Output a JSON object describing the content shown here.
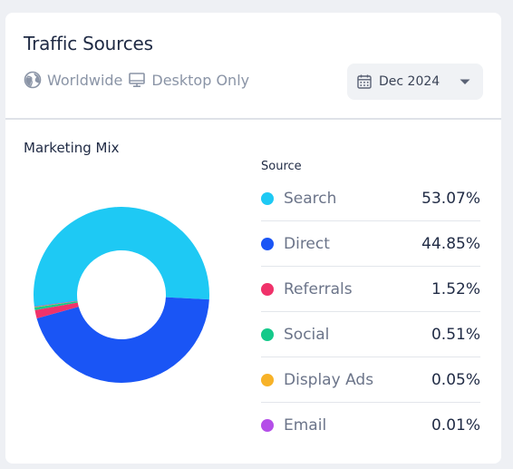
{
  "card": {
    "title": "Traffic Sources",
    "filters": [
      {
        "icon": "globe-icon",
        "label": "Worldwide"
      },
      {
        "icon": "desktop-icon",
        "label": "Desktop Only"
      }
    ],
    "date_picker": {
      "icon": "calendar-icon",
      "label": "Dec 2024"
    }
  },
  "section": {
    "title": "Marketing Mix"
  },
  "legend": {
    "header": "Source"
  },
  "colors": {
    "Search": "#1ec9f4",
    "Direct": "#1a55f5",
    "Referrals": "#f0326a",
    "Social": "#14c98a",
    "Display Ads": "#f7b228",
    "Email": "#b44ee8"
  },
  "chart_data": {
    "type": "pie",
    "categories": [
      "Search",
      "Direct",
      "Referrals",
      "Social",
      "Display Ads",
      "Email"
    ],
    "values": [
      53.07,
      44.85,
      1.52,
      0.51,
      0.05,
      0.01
    ],
    "labels": [
      "53.07%",
      "44.85%",
      "1.52%",
      "0.51%",
      "0.05%",
      "0.01%"
    ],
    "title": "",
    "donut": true
  }
}
